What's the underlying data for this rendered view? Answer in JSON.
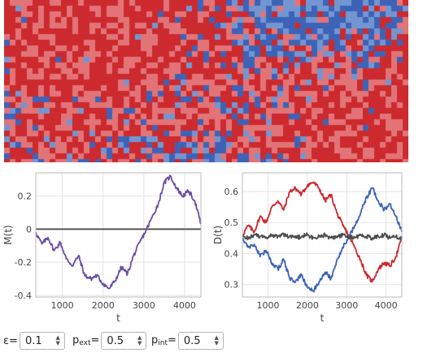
{
  "lattice": {
    "colors": {
      "red_dark": "#cc2a2e",
      "red_light": "#e27478",
      "blue_dark": "#3d63b8",
      "blue_light": "#7396d2"
    }
  },
  "chart_data": [
    {
      "type": "line",
      "xlabel": "t",
      "ylabel": "M(t)",
      "xlim": [
        350,
        4400
      ],
      "ylim": [
        -0.41,
        0.34
      ],
      "xticks": [
        1000,
        2000,
        3000,
        4000
      ],
      "yticks": [
        -0.4,
        -0.2,
        0,
        0.2
      ],
      "xtick_labels": [
        "1000",
        "2000",
        "3000",
        "4000"
      ],
      "ytick_labels": [
        "-0.4",
        "-0.2",
        "0",
        "0.2"
      ],
      "grid": true,
      "zero_line": {
        "y": 0,
        "color": "#555555"
      },
      "series": [
        {
          "color": "#6a4fa3",
          "x": [
            350,
            500,
            650,
            800,
            950,
            1100,
            1250,
            1400,
            1550,
            1700,
            1850,
            2000,
            2150,
            2300,
            2450,
            2600,
            2750,
            2900,
            3050,
            3200,
            3350,
            3500,
            3650,
            3800,
            3950,
            4100,
            4250,
            4400
          ],
          "y": [
            -0.02,
            -0.09,
            -0.05,
            -0.13,
            -0.08,
            -0.18,
            -0.22,
            -0.16,
            -0.28,
            -0.3,
            -0.28,
            -0.33,
            -0.36,
            -0.31,
            -0.23,
            -0.27,
            -0.16,
            -0.08,
            -0.01,
            0.07,
            0.15,
            0.28,
            0.32,
            0.25,
            0.2,
            0.23,
            0.17,
            0.03
          ]
        }
      ]
    },
    {
      "type": "line",
      "xlabel": "t",
      "ylabel": "D(t)",
      "xlim": [
        350,
        4400
      ],
      "ylim": [
        0.26,
        0.66
      ],
      "xticks": [
        1000,
        2000,
        3000,
        4000
      ],
      "yticks": [
        0.3,
        0.4,
        0.5,
        0.6
      ],
      "xtick_labels": [
        "1000",
        "2000",
        "3000",
        "4000"
      ],
      "ytick_labels": [
        "0.3",
        "0.4",
        "0.5",
        "0.6"
      ],
      "grid": true,
      "series": [
        {
          "color": "#cc2a2e",
          "x": [
            350,
            500,
            650,
            800,
            950,
            1100,
            1250,
            1400,
            1550,
            1700,
            1850,
            2000,
            2150,
            2300,
            2450,
            2600,
            2750,
            2900,
            3050,
            3200,
            3350,
            3500,
            3650,
            3800,
            3950,
            4100,
            4250,
            4400
          ],
          "y": [
            0.46,
            0.49,
            0.47,
            0.52,
            0.5,
            0.55,
            0.57,
            0.54,
            0.6,
            0.61,
            0.59,
            0.62,
            0.63,
            0.61,
            0.57,
            0.59,
            0.53,
            0.49,
            0.46,
            0.42,
            0.38,
            0.33,
            0.31,
            0.35,
            0.37,
            0.36,
            0.39,
            0.45
          ]
        },
        {
          "color": "#3d63b8",
          "x": [
            350,
            500,
            650,
            800,
            950,
            1100,
            1250,
            1400,
            1550,
            1700,
            1850,
            2000,
            2150,
            2300,
            2450,
            2600,
            2750,
            2900,
            3050,
            3200,
            3350,
            3500,
            3650,
            3800,
            3950,
            4100,
            4250,
            4400
          ],
          "y": [
            0.45,
            0.42,
            0.43,
            0.39,
            0.41,
            0.37,
            0.35,
            0.38,
            0.32,
            0.31,
            0.33,
            0.29,
            0.28,
            0.31,
            0.34,
            0.32,
            0.38,
            0.42,
            0.45,
            0.49,
            0.53,
            0.58,
            0.61,
            0.57,
            0.54,
            0.56,
            0.52,
            0.47
          ]
        },
        {
          "color": "#4d4d4d",
          "x": [
            350,
            500,
            650,
            800,
            950,
            1100,
            1250,
            1400,
            1550,
            1700,
            1850,
            2000,
            2150,
            2300,
            2450,
            2600,
            2750,
            2900,
            3050,
            3200,
            3350,
            3500,
            3650,
            3800,
            3950,
            4100,
            4250,
            4400
          ],
          "y": [
            0.455,
            0.45,
            0.46,
            0.455,
            0.45,
            0.46,
            0.455,
            0.46,
            0.455,
            0.45,
            0.455,
            0.46,
            0.45,
            0.455,
            0.46,
            0.45,
            0.455,
            0.46,
            0.455,
            0.45,
            0.46,
            0.455,
            0.45,
            0.455,
            0.46,
            0.45,
            0.455,
            0.45
          ]
        }
      ]
    }
  ],
  "controls": {
    "epsilon": {
      "symbol": "ε",
      "sub": "",
      "eq": "=",
      "value": "0.1"
    },
    "p_ext": {
      "symbol": "p",
      "sub": "ext",
      "eq": "=",
      "value": "0.5"
    },
    "p_int": {
      "symbol": "p",
      "sub": "int",
      "eq": "=",
      "value": "0.5"
    },
    "arrow_up": "▲",
    "arrow_down": "▼"
  }
}
